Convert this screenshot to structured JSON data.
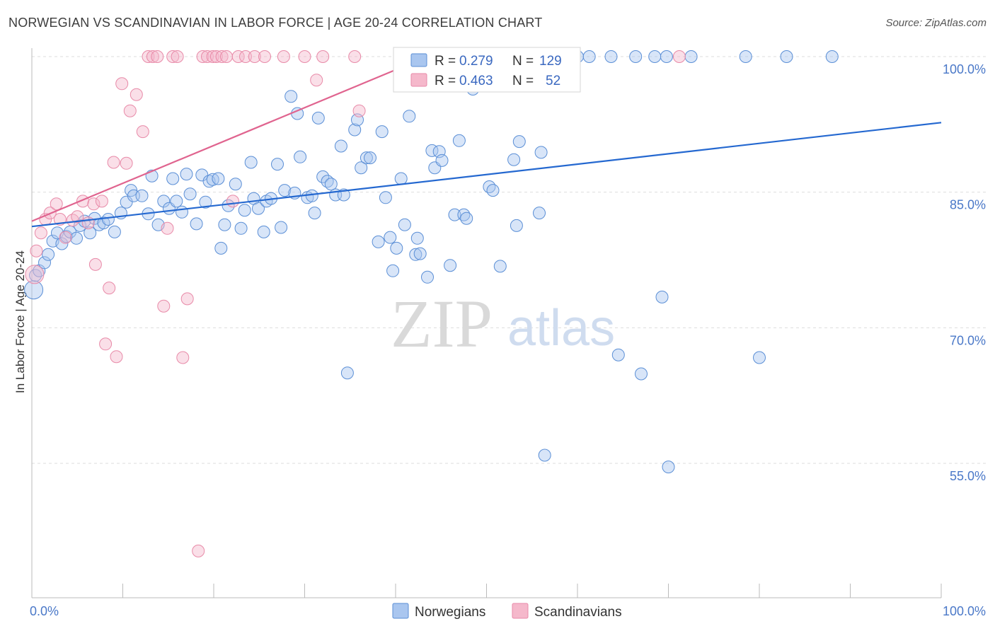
{
  "header": {
    "title": "NORWEGIAN VS SCANDINAVIAN IN LABOR FORCE | AGE 20-24 CORRELATION CHART",
    "source": "Source: ZipAtlas.com"
  },
  "watermark": {
    "zip": "ZIP",
    "atlas": "atlas"
  },
  "legend": {
    "rows": [
      {
        "r_label": "R =",
        "r_value": "0.279",
        "n_label": "N =",
        "n_value": "129"
      },
      {
        "r_label": "R =",
        "r_value": "0.463",
        "n_label": "N =",
        "n_value": "52"
      }
    ]
  },
  "bottom_legend": {
    "items": [
      "Norwegians",
      "Scandinavians"
    ]
  },
  "colors": {
    "blue_fill": "#a9c6ef",
    "blue_stroke": "#5b8fd6",
    "blue_line": "#2468d0",
    "pink_fill": "#f5b8cb",
    "pink_stroke": "#e88aa8",
    "pink_line": "#e0648f",
    "tick_text": "#4a78c8",
    "grid": "#dddddd"
  },
  "chart_data": {
    "type": "scatter",
    "title": "NORWEGIAN VS SCANDINAVIAN IN LABOR FORCE | AGE 20-24 CORRELATION CHART",
    "xlabel": "",
    "ylabel": "In Labor Force | Age 20-24",
    "xlim": [
      0,
      100
    ],
    "ylim": [
      38,
      101
    ],
    "x_tick_labels": [
      "0.0%",
      "100.0%"
    ],
    "y_ticks": [
      {
        "value": 55,
        "label": "55.0%"
      },
      {
        "value": 70,
        "label": "70.0%"
      },
      {
        "value": 85,
        "label": "85.0%"
      },
      {
        "value": 100,
        "label": "100.0%"
      }
    ],
    "series": [
      {
        "name": "Norwegians",
        "color": "blue",
        "R": 0.279,
        "N": 129,
        "trendline": {
          "x": [
            0,
            100
          ],
          "y": [
            81.2,
            92.7
          ]
        },
        "points": [
          [
            0.2,
            74.2
          ],
          [
            0.4,
            75.8
          ],
          [
            0.8,
            76.3
          ],
          [
            1.4,
            77.2
          ],
          [
            1.8,
            78.1
          ],
          [
            2.3,
            79.6
          ],
          [
            2.8,
            80.5
          ],
          [
            3.3,
            79.3
          ],
          [
            3.8,
            80.1
          ],
          [
            4.2,
            80.6
          ],
          [
            4.9,
            79.9
          ],
          [
            5.3,
            81.3
          ],
          [
            5.8,
            81.8
          ],
          [
            6.4,
            80.5
          ],
          [
            6.9,
            82.1
          ],
          [
            7.4,
            81.4
          ],
          [
            7.9,
            81.6
          ],
          [
            8.4,
            82.0
          ],
          [
            9.1,
            80.6
          ],
          [
            9.8,
            82.7
          ],
          [
            10.4,
            83.9
          ],
          [
            10.9,
            85.2
          ],
          [
            11.2,
            84.6
          ],
          [
            12.1,
            84.6
          ],
          [
            12.8,
            82.6
          ],
          [
            13.2,
            86.8
          ],
          [
            13.9,
            81.4
          ],
          [
            14.5,
            84.0
          ],
          [
            15.1,
            83.2
          ],
          [
            15.5,
            86.5
          ],
          [
            15.9,
            84.0
          ],
          [
            16.5,
            82.8
          ],
          [
            17.0,
            87.0
          ],
          [
            17.4,
            84.8
          ],
          [
            18.1,
            81.5
          ],
          [
            18.7,
            86.9
          ],
          [
            19.1,
            83.9
          ],
          [
            19.5,
            86.2
          ],
          [
            19.9,
            86.4
          ],
          [
            20.5,
            86.5
          ],
          [
            20.8,
            78.8
          ],
          [
            21.2,
            81.4
          ],
          [
            21.6,
            83.5
          ],
          [
            22.4,
            85.9
          ],
          [
            23.0,
            81.0
          ],
          [
            23.4,
            83.0
          ],
          [
            24.1,
            88.3
          ],
          [
            24.4,
            84.3
          ],
          [
            24.9,
            83.2
          ],
          [
            25.5,
            80.6
          ],
          [
            25.8,
            84.0
          ],
          [
            26.3,
            84.3
          ],
          [
            27.0,
            88.1
          ],
          [
            27.4,
            81.1
          ],
          [
            27.8,
            85.2
          ],
          [
            28.5,
            95.6
          ],
          [
            28.9,
            84.9
          ],
          [
            29.2,
            93.7
          ],
          [
            29.5,
            88.9
          ],
          [
            30.3,
            84.4
          ],
          [
            30.8,
            84.6
          ],
          [
            31.1,
            82.7
          ],
          [
            31.5,
            93.2
          ],
          [
            32.0,
            86.7
          ],
          [
            32.5,
            86.2
          ],
          [
            32.9,
            85.9
          ],
          [
            33.4,
            84.7
          ],
          [
            34.0,
            90.1
          ],
          [
            34.3,
            84.7
          ],
          [
            34.7,
            65.0
          ],
          [
            35.5,
            91.9
          ],
          [
            35.8,
            93.0
          ],
          [
            36.2,
            87.7
          ],
          [
            36.8,
            88.8
          ],
          [
            37.2,
            88.8
          ],
          [
            38.1,
            79.5
          ],
          [
            38.5,
            91.7
          ],
          [
            38.9,
            84.4
          ],
          [
            39.4,
            80.0
          ],
          [
            39.7,
            76.3
          ],
          [
            40.1,
            78.8
          ],
          [
            40.6,
            86.5
          ],
          [
            41.0,
            81.4
          ],
          [
            41.5,
            93.4
          ],
          [
            42.2,
            78.1
          ],
          [
            42.4,
            79.9
          ],
          [
            42.7,
            78.2
          ],
          [
            43.5,
            75.6
          ],
          [
            44.0,
            89.6
          ],
          [
            44.3,
            87.7
          ],
          [
            44.8,
            89.5
          ],
          [
            45.1,
            88.5
          ],
          [
            46.0,
            76.9
          ],
          [
            46.5,
            82.5
          ],
          [
            47.0,
            90.7
          ],
          [
            47.5,
            82.5
          ],
          [
            47.8,
            82.1
          ],
          [
            48.5,
            96.4
          ],
          [
            50.3,
            85.6
          ],
          [
            50.7,
            85.2
          ],
          [
            51.5,
            76.8
          ],
          [
            53.0,
            88.6
          ],
          [
            53.3,
            81.3
          ],
          [
            53.6,
            90.6
          ],
          [
            55.8,
            82.7
          ],
          [
            56.0,
            89.4
          ],
          [
            56.4,
            55.9
          ],
          [
            63.7,
            100.0
          ],
          [
            64.5,
            67.0
          ],
          [
            66.4,
            100.0
          ],
          [
            67.0,
            64.9
          ],
          [
            68.5,
            100.0
          ],
          [
            69.3,
            73.4
          ],
          [
            69.8,
            100.0
          ],
          [
            70.0,
            54.6
          ],
          [
            72.5,
            100.0
          ],
          [
            78.5,
            100.0
          ],
          [
            80.0,
            66.7
          ],
          [
            83.0,
            100.0
          ],
          [
            88.0,
            100.0
          ],
          [
            48.3,
            100.0
          ],
          [
            49.0,
            100.0
          ],
          [
            50.1,
            100.0
          ],
          [
            54.3,
            100.0
          ],
          [
            55.0,
            100.0
          ],
          [
            57.1,
            100.0
          ],
          [
            58.0,
            100.0
          ],
          [
            60.0,
            100.0
          ],
          [
            61.3,
            100.0
          ]
        ]
      },
      {
        "name": "Scandinavians",
        "color": "pink",
        "R": 0.463,
        "N": 52,
        "trendline": {
          "x": [
            0,
            43.5
          ],
          "y": [
            81.8,
            100.0
          ]
        },
        "points": [
          [
            0.3,
            75.9
          ],
          [
            0.5,
            78.5
          ],
          [
            1.0,
            80.5
          ],
          [
            1.5,
            82.0
          ],
          [
            2.0,
            82.7
          ],
          [
            2.7,
            83.7
          ],
          [
            3.1,
            82.0
          ],
          [
            3.7,
            80.0
          ],
          [
            4.5,
            81.9
          ],
          [
            5.0,
            82.3
          ],
          [
            5.6,
            84.0
          ],
          [
            6.2,
            81.6
          ],
          [
            6.8,
            83.7
          ],
          [
            7.0,
            77.0
          ],
          [
            7.7,
            84.0
          ],
          [
            8.1,
            68.2
          ],
          [
            8.5,
            74.4
          ],
          [
            9.0,
            88.3
          ],
          [
            9.3,
            66.8
          ],
          [
            9.9,
            97.0
          ],
          [
            10.4,
            88.2
          ],
          [
            10.8,
            94.0
          ],
          [
            11.5,
            95.8
          ],
          [
            12.2,
            91.7
          ],
          [
            12.8,
            100.0
          ],
          [
            13.3,
            100.0
          ],
          [
            13.8,
            100.0
          ],
          [
            14.5,
            72.4
          ],
          [
            14.9,
            81.0
          ],
          [
            15.5,
            100.0
          ],
          [
            16.0,
            100.0
          ],
          [
            16.6,
            66.7
          ],
          [
            17.1,
            73.2
          ],
          [
            18.3,
            45.3
          ],
          [
            18.8,
            100.0
          ],
          [
            19.3,
            100.0
          ],
          [
            19.9,
            100.0
          ],
          [
            20.3,
            100.0
          ],
          [
            20.9,
            100.0
          ],
          [
            21.4,
            100.0
          ],
          [
            22.1,
            84.0
          ],
          [
            22.7,
            100.0
          ],
          [
            23.5,
            100.0
          ],
          [
            24.5,
            100.0
          ],
          [
            25.6,
            100.0
          ],
          [
            27.7,
            100.0
          ],
          [
            30.0,
            100.0
          ],
          [
            31.3,
            97.4
          ],
          [
            32.0,
            100.0
          ],
          [
            35.5,
            100.0
          ],
          [
            36.0,
            94.0
          ],
          [
            71.2,
            100.0
          ]
        ]
      }
    ]
  }
}
